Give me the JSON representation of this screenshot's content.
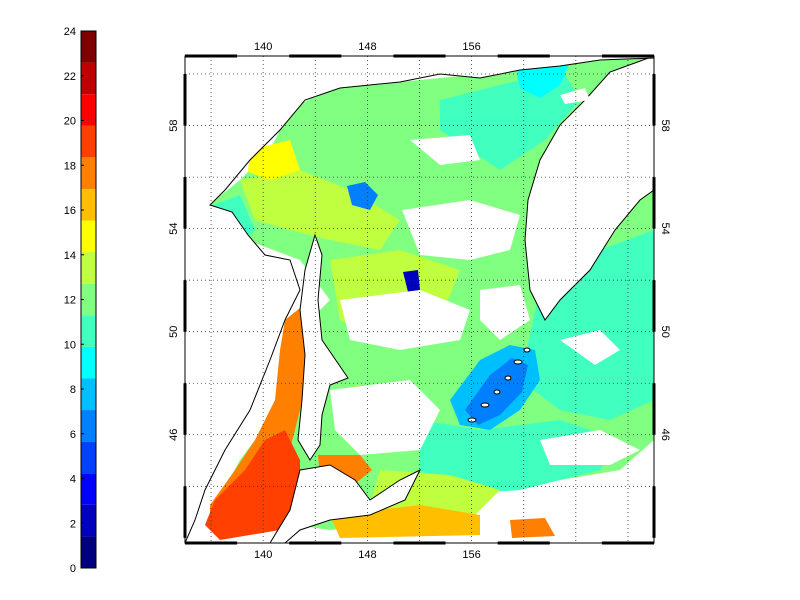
{
  "map": {
    "lon_ticks": [
      140,
      148,
      156
    ],
    "lat_ticks": [
      46,
      50,
      54,
      58
    ],
    "lon_range": [
      134,
      170
    ],
    "lat_range": [
      41.8,
      60.7
    ],
    "grid": "dotted",
    "region": "Sea of Okhotsk / Japan Sea sector"
  },
  "colorbar": {
    "ticks": [
      0,
      2,
      4,
      6,
      8,
      10,
      12,
      14,
      16,
      18,
      20,
      22,
      24
    ],
    "range": [
      0,
      24
    ],
    "colormap": "jet",
    "levels": [
      "#00007f",
      "#0000bf",
      "#0000ff",
      "#0040ff",
      "#0080ff",
      "#00bfff",
      "#00ffff",
      "#40ffbf",
      "#80ff80",
      "#bfff40",
      "#ffff00",
      "#ffbf00",
      "#ff8000",
      "#ff4000",
      "#ff0000",
      "#bf0000",
      "#7f0000"
    ]
  }
}
